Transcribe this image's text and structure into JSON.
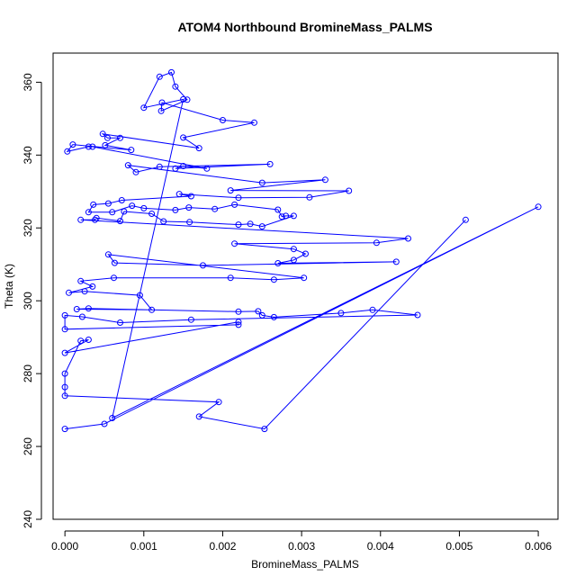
{
  "chart_data": {
    "type": "line",
    "title": "ATOM4 Northbound BromineMass_PALMS",
    "xlabel": "BromineMass_PALMS",
    "ylabel": "Theta (K)",
    "xlim": [
      -0.00015,
      0.00625
    ],
    "ylim": [
      240,
      368
    ],
    "xticks": [
      0.0,
      0.001,
      0.002,
      0.003,
      0.004,
      0.005,
      0.006
    ],
    "xtick_labels": [
      "0.000",
      "0.001",
      "0.002",
      "0.003",
      "0.004",
      "0.005",
      "0.006"
    ],
    "yticks": [
      240,
      260,
      280,
      300,
      320,
      340,
      360
    ],
    "ytick_labels": [
      "240",
      "260",
      "280",
      "300",
      "320",
      "340",
      "360"
    ],
    "grid": false,
    "legend": "none",
    "series": [
      {
        "color": "#0000ff",
        "points": [
          [
            0.0,
            264.8
          ],
          [
            0.0005,
            266.2
          ],
          [
            0.006,
            325.8
          ],
          [
            0.0006,
            267.8
          ],
          [
            0.0015,
            355.3
          ],
          [
            0.001,
            353.0
          ],
          [
            0.0012,
            361.5
          ],
          [
            0.00135,
            362.7
          ],
          [
            0.0014,
            358.8
          ],
          [
            0.00155,
            355.2
          ],
          [
            0.00122,
            352.1
          ],
          [
            0.00123,
            354.4
          ],
          [
            0.002,
            349.6
          ],
          [
            0.0024,
            348.9
          ],
          [
            0.0015,
            344.8
          ],
          [
            0.0017,
            341.9
          ],
          [
            0.00048,
            345.8
          ],
          [
            0.00054,
            344.7
          ],
          [
            0.0007,
            344.7
          ],
          [
            0.00051,
            342.7
          ],
          [
            0.00084,
            341.4
          ],
          [
            0.0001,
            342.9
          ],
          [
            3e-05,
            341.0
          ],
          [
            0.0003,
            342.3
          ],
          [
            0.00035,
            342.3
          ],
          [
            0.0018,
            336.3
          ],
          [
            0.0015,
            337.0
          ],
          [
            0.0014,
            336.3
          ],
          [
            0.0026,
            337.5
          ],
          [
            0.0012,
            336.8
          ],
          [
            0.0009,
            335.3
          ],
          [
            0.0008,
            337.2
          ],
          [
            0.0025,
            332.4
          ],
          [
            0.0033,
            333.2
          ],
          [
            0.0021,
            330.3
          ],
          [
            0.0036,
            330.2
          ],
          [
            0.0031,
            328.4
          ],
          [
            0.0022,
            328.3
          ],
          [
            0.00145,
            329.3
          ],
          [
            0.0016,
            328.7
          ],
          [
            0.00072,
            327.6
          ],
          [
            0.00055,
            326.7
          ],
          [
            0.00036,
            326.4
          ],
          [
            0.0003,
            324.3
          ],
          [
            0.0006,
            324.3
          ],
          [
            0.00085,
            326.1
          ],
          [
            0.001,
            325.4
          ],
          [
            0.0014,
            324.9
          ],
          [
            0.00157,
            325.6
          ],
          [
            0.0019,
            325.2
          ],
          [
            0.00215,
            326.4
          ],
          [
            0.0027,
            325.0
          ],
          [
            0.00275,
            323.1
          ],
          [
            0.0028,
            323.3
          ],
          [
            0.0029,
            323.3
          ],
          [
            0.0025,
            320.4
          ],
          [
            0.00235,
            321.1
          ],
          [
            0.0022,
            320.9
          ],
          [
            0.00158,
            321.6
          ],
          [
            0.00125,
            321.8
          ],
          [
            0.0011,
            323.9
          ],
          [
            0.00075,
            324.5
          ],
          [
            0.0007,
            321.9
          ],
          [
            0.0004,
            322.7
          ],
          [
            0.00038,
            322.2
          ],
          [
            0.0002,
            322.2
          ],
          [
            0.00435,
            317.1
          ],
          [
            0.00395,
            315.9
          ],
          [
            0.00215,
            315.7
          ],
          [
            0.0029,
            314.2
          ],
          [
            0.00305,
            312.9
          ],
          [
            0.0029,
            311.2
          ],
          [
            0.0027,
            310.3
          ],
          [
            0.0042,
            310.7
          ],
          [
            0.00175,
            309.7
          ],
          [
            0.00063,
            310.4
          ],
          [
            0.00055,
            312.7
          ],
          [
            0.00303,
            306.3
          ],
          [
            0.00265,
            305.8
          ],
          [
            0.0021,
            306.3
          ],
          [
            0.00062,
            306.3
          ],
          [
            0.0002,
            305.4
          ],
          [
            0.00035,
            303.9
          ],
          [
            5e-05,
            302.2
          ],
          [
            0.00025,
            302.6
          ],
          [
            0.00095,
            301.5
          ],
          [
            0.0011,
            297.5
          ],
          [
            0.00015,
            297.7
          ],
          [
            0.0003,
            297.9
          ],
          [
            0.0022,
            297.0
          ],
          [
            0.00245,
            297.1
          ],
          [
            0.0025,
            296.0
          ],
          [
            0.00265,
            295.5
          ],
          [
            0.0035,
            296.6
          ],
          [
            0.0039,
            297.5
          ],
          [
            0.00447,
            296.1
          ],
          [
            0.0016,
            294.8
          ],
          [
            0.0007,
            294.0
          ],
          [
            0.00022,
            295.6
          ],
          [
            0.0,
            296.0
          ],
          [
            0.0,
            292.2
          ],
          [
            0.0022,
            293.4
          ],
          [
            0.0022,
            294.2
          ],
          [
            0.0,
            285.7
          ],
          [
            0.0003,
            289.3
          ],
          [
            0.0002,
            289.0
          ],
          [
            0.0,
            280.0
          ],
          [
            0.0,
            276.3
          ],
          [
            0.0,
            273.9
          ],
          [
            0.00195,
            272.2
          ],
          [
            0.0017,
            268.2
          ],
          [
            0.00253,
            264.8
          ],
          [
            0.00508,
            322.2
          ]
        ]
      }
    ]
  }
}
